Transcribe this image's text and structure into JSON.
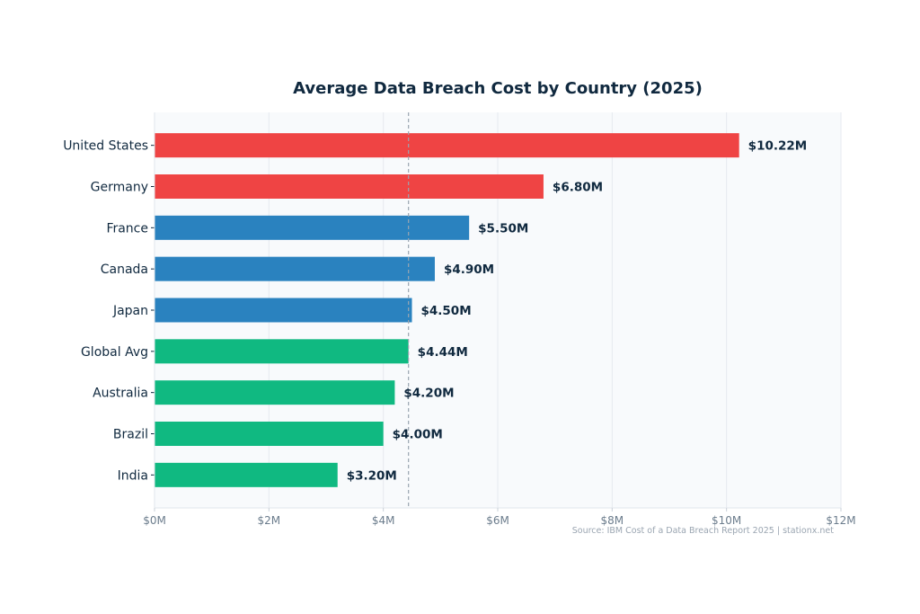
{
  "chart_data": {
    "type": "bar",
    "orientation": "horizontal",
    "title": "Average Data Breach Cost by Country (2025)",
    "categories": [
      "United States",
      "Germany",
      "France",
      "Canada",
      "Japan",
      "Global Avg",
      "Australia",
      "Brazil",
      "India"
    ],
    "values": [
      10.22,
      6.8,
      5.5,
      4.9,
      4.5,
      4.44,
      4.2,
      4.0,
      3.2
    ],
    "value_labels": [
      "$10.22M",
      "$6.80M",
      "$5.50M",
      "$4.90M",
      "$4.50M",
      "$4.44M",
      "$4.20M",
      "$4.00M",
      "$3.20M"
    ],
    "colors": [
      "#ef4444",
      "#ef4444",
      "#2a82bf",
      "#2a82bf",
      "#2a82bf",
      "#10b981",
      "#10b981",
      "#10b981",
      "#10b981"
    ],
    "xlim": [
      0,
      12
    ],
    "xticks": [
      0,
      2,
      4,
      6,
      8,
      10,
      12
    ],
    "xtick_labels": [
      "$0M",
      "$2M",
      "$4M",
      "$6M",
      "$8M",
      "$10M",
      "$12M"
    ],
    "reference_line": {
      "value": 4.44,
      "style": "dashed",
      "color": "#9aa5b1"
    },
    "grid": "vertical",
    "source_note": "Source: IBM Cost of a Data Breach Report 2025  |  stationx.net"
  }
}
